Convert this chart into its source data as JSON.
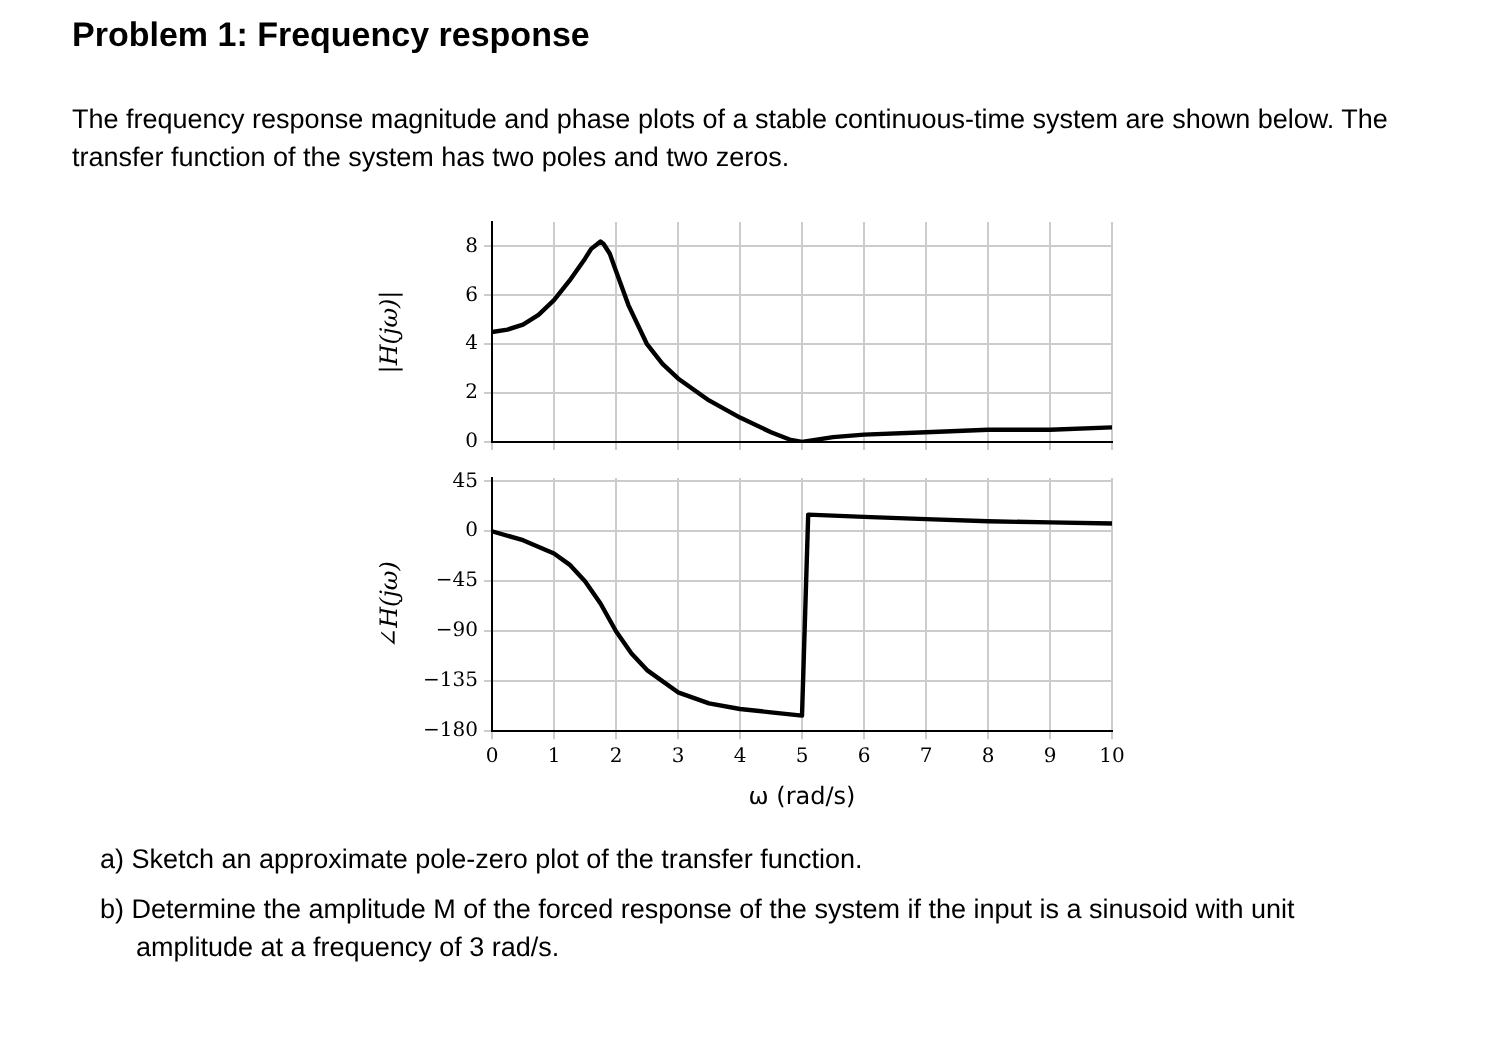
{
  "chart_data": [
    {
      "type": "line",
      "title": "Problem 1: Frequency response",
      "annotations": [
        "The frequency response magnitude and phase plots of a stable continuous-time system are shown below. The transfer function of the system has two poles and two zeros."
      ],
      "ylabel": "|H(jω)|",
      "xlim": [
        0,
        10
      ],
      "xticks": [
        0,
        1,
        2,
        3,
        4,
        5,
        6,
        7,
        8,
        9,
        10
      ],
      "ylim": [
        0,
        9
      ],
      "yticks": [
        0,
        2,
        4,
        6,
        8
      ],
      "grid": true,
      "tick_labels": "y",
      "legend": false,
      "x": [
        0,
        0.25,
        0.5,
        0.75,
        1,
        1.25,
        1.5,
        1.6,
        1.7,
        1.75,
        1.8,
        1.9,
        2,
        2.2,
        2.5,
        2.75,
        3,
        3.5,
        4,
        4.5,
        4.8,
        5,
        5.5,
        6,
        7,
        8,
        9,
        10
      ],
      "series": [
        {
          "color": "#000000",
          "values": [
            4.5,
            4.6,
            4.8,
            5.2,
            5.8,
            6.6,
            7.5,
            7.9,
            8.1,
            8.2,
            8.1,
            7.7,
            7.0,
            5.6,
            4.0,
            3.2,
            2.6,
            1.7,
            1.0,
            0.4,
            0.1,
            0,
            0.2,
            0.3,
            0.4,
            0.5,
            0.5,
            0.6
          ]
        }
      ]
    },
    {
      "type": "line",
      "annotations": [
        "a) Sketch an approximate pole-zero plot of the transfer function.",
        "b) Determine the amplitude M of the forced response of the system if the input is a sinusoid with unit amplitude at a frequency of 3 rad/s."
      ],
      "xlabel": "ω (rad/s)",
      "ylabel": "∠H(jω)",
      "xlim": [
        0,
        10
      ],
      "xticks": [
        0,
        1,
        2,
        3,
        4,
        5,
        6,
        7,
        8,
        9,
        10
      ],
      "ylim": [
        -180,
        48
      ],
      "yticks": [
        -180,
        -135,
        -90,
        -45,
        0,
        45
      ],
      "grid": true,
      "legend": false,
      "x": [
        0,
        0.5,
        1,
        1.25,
        1.5,
        1.75,
        2,
        2.25,
        2.5,
        3,
        3.5,
        4,
        4.5,
        5,
        5.1,
        6,
        7,
        8,
        9,
        10
      ],
      "series": [
        {
          "color": "#000000",
          "values": [
            0,
            -8,
            -20,
            -30,
            -45,
            -65,
            -90,
            -110,
            -125,
            -145,
            -155,
            -160,
            -163,
            -166,
            15,
            13,
            11,
            9,
            8,
            7
          ]
        }
      ]
    }
  ]
}
